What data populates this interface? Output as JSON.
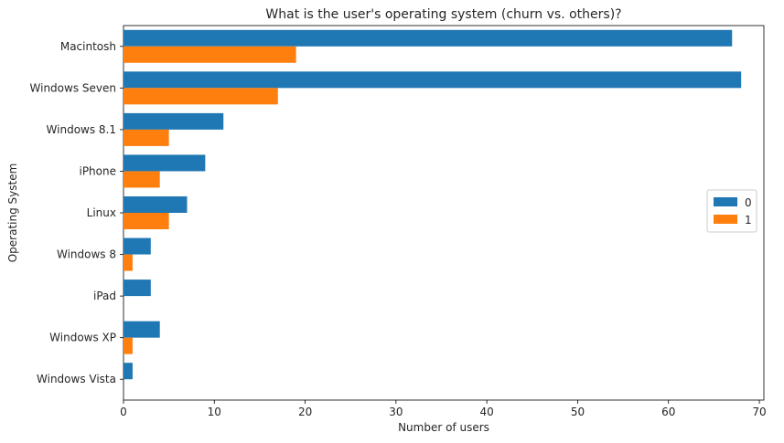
{
  "chart_data": {
    "type": "bar",
    "orientation": "horizontal",
    "title": "What is the user's operating system (churn vs. others)?",
    "xlabel": "Number of users",
    "ylabel": "Operating System",
    "categories": [
      "Macintosh",
      "Windows Seven",
      "Windows 8.1",
      "iPhone",
      "Linux",
      "Windows 8",
      "iPad",
      "Windows XP",
      "Windows Vista"
    ],
    "series": [
      {
        "name": "0",
        "color": "#1f77b4",
        "values": [
          67,
          68,
          11,
          9,
          7,
          3,
          3,
          4,
          1
        ]
      },
      {
        "name": "1",
        "color": "#ff7f0e",
        "values": [
          19,
          17,
          5,
          4,
          5,
          1,
          0,
          1,
          0
        ]
      }
    ],
    "xlim": [
      0,
      70.5
    ],
    "xticks": [
      0,
      10,
      20,
      30,
      40,
      50,
      60,
      70
    ],
    "grid": false,
    "legend_position": "center-right"
  }
}
